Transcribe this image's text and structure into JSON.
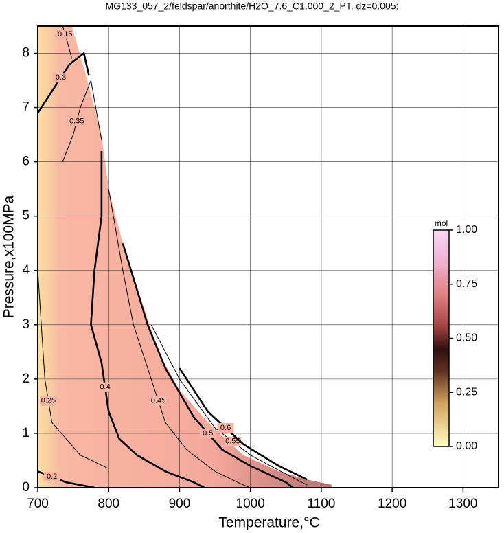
{
  "chart_data": {
    "type": "contour",
    "title": "MG133_057_2/feldspar/anorthite/H2O_7.6_C1.000_2_PT, dz=0.005:",
    "xlabel": "Temperature,°C",
    "ylabel": "Pressure,x100MPa",
    "xlim": [
      700,
      1350
    ],
    "ylim": [
      0,
      8.5
    ],
    "xticks": [
      700,
      800,
      900,
      1000,
      1100,
      1200,
      1300
    ],
    "yticks": [
      0,
      1,
      2,
      3,
      4,
      5,
      6,
      7,
      8
    ],
    "grid": true,
    "region": {
      "x": [
        700,
        748,
        770,
        790,
        800,
        820,
        845,
        870,
        900,
        940,
        990,
        1040,
        1080,
        1115,
        1115,
        700
      ],
      "y": [
        8.5,
        8.5,
        7.5,
        6.5,
        5.5,
        4.5,
        3.5,
        2.5,
        1.8,
        1.2,
        0.6,
        0.3,
        0.15,
        0.05,
        0,
        0
      ]
    },
    "contours": [
      {
        "level": 0.15,
        "x": [
          735,
          742,
          748
        ],
        "y": [
          8.5,
          8.2,
          7.9
        ]
      },
      {
        "level": 0.2,
        "x": [
          700,
          740,
          780
        ],
        "y": [
          0.3,
          0.1,
          0
        ]
      },
      {
        "level": 0.25,
        "x": [
          700,
          705,
          710,
          720,
          760,
          800
        ],
        "y": [
          4,
          3,
          2,
          1.2,
          0.6,
          0.35
        ]
      },
      {
        "level": 0.3,
        "x": [
          700,
          720,
          745,
          765,
          772
        ],
        "y": [
          6.9,
          7.3,
          7.8,
          8.0,
          7.6
        ]
      },
      {
        "level": 0.35,
        "x": [
          735,
          750,
          760,
          775,
          790
        ],
        "y": [
          6,
          6.5,
          7.0,
          7.5,
          6.4
        ]
      },
      {
        "level": 0.4,
        "x": [
          790,
          790,
          780,
          775,
          790,
          800,
          815,
          840,
          880,
          920,
          935
        ],
        "y": [
          6.2,
          5,
          4,
          3,
          2.3,
          1.4,
          0.9,
          0.6,
          0.3,
          0.1,
          0
        ]
      },
      {
        "level": 0.45,
        "x": [
          800,
          820,
          835,
          860,
          880,
          910,
          950,
          990,
          1000
        ],
        "y": [
          5.5,
          4,
          3,
          2,
          1.2,
          0.7,
          0.3,
          0.05,
          0
        ]
      },
      {
        "level": 0.5,
        "x": [
          820,
          855,
          880,
          920,
          960,
          1000,
          1050,
          1060
        ],
        "y": [
          4.5,
          3,
          2.2,
          1.3,
          0.7,
          0.4,
          0.1,
          0
        ]
      },
      {
        "level": 0.55,
        "x": [
          860,
          900,
          950,
          1000,
          1050,
          1080
        ],
        "y": [
          3,
          2,
          1.1,
          0.6,
          0.25,
          0.05
        ]
      },
      {
        "level": 0.6,
        "x": [
          900,
          940,
          990,
          1040,
          1080
        ],
        "y": [
          2.2,
          1.4,
          0.8,
          0.4,
          0.15
        ]
      }
    ],
    "colorbar": {
      "unit": "mol",
      "lim": [
        0,
        1
      ],
      "ticks": [
        {
          "value": 0,
          "label": "0.00"
        },
        {
          "value": 0.25,
          "label": "0.25"
        },
        {
          "value": 0.5,
          "label": "0.50"
        },
        {
          "value": 0.75,
          "label": "0.75"
        },
        {
          "value": 1,
          "label": "1.00"
        }
      ]
    }
  }
}
